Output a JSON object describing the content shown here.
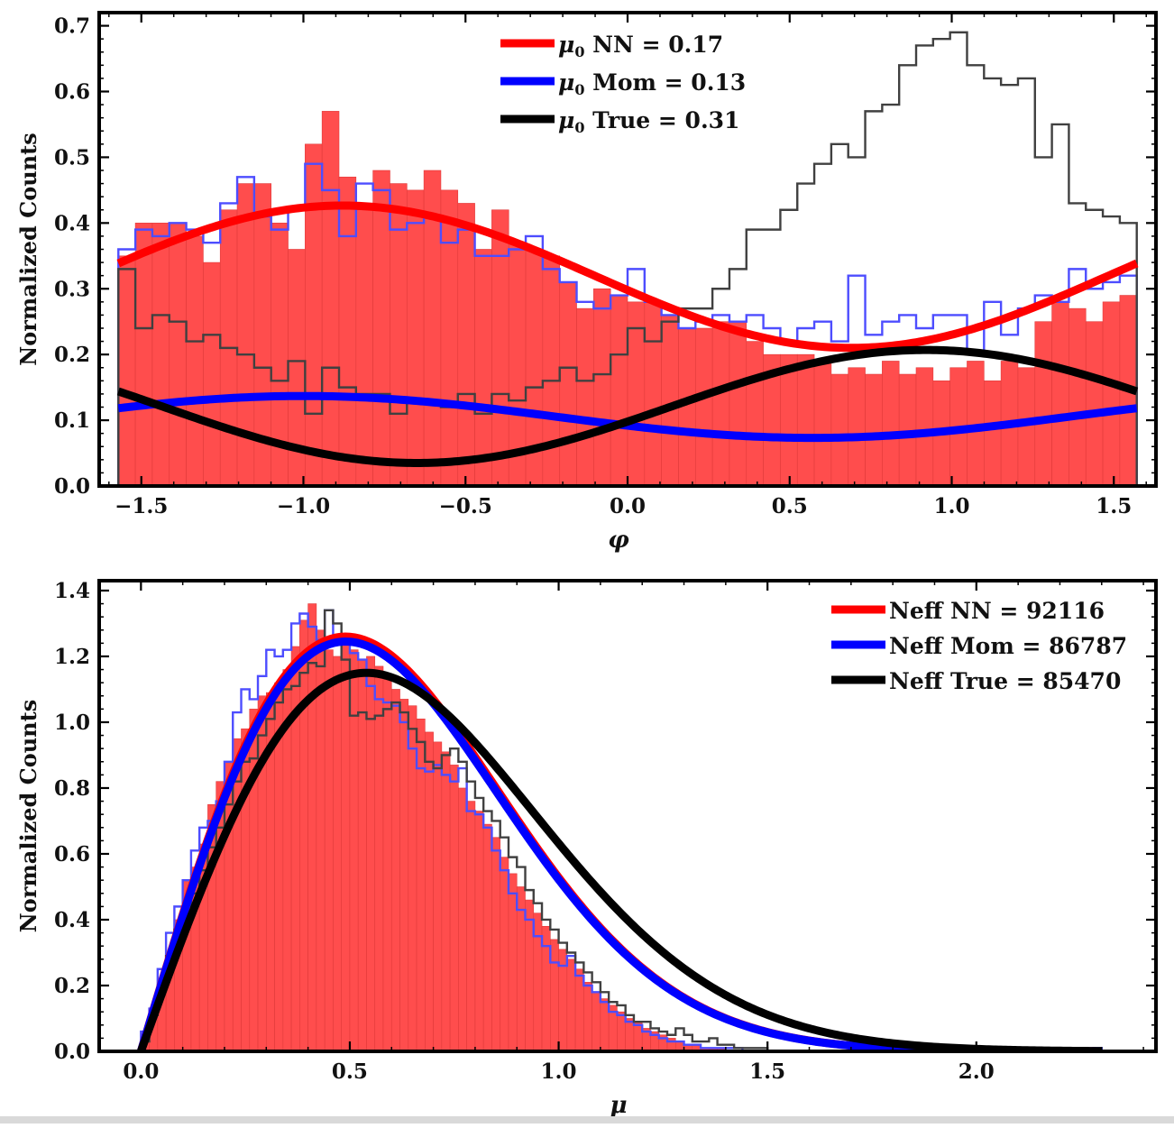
{
  "chart_data": [
    {
      "type": "bar",
      "title": "",
      "xlabel": "φ",
      "ylabel": "Normalized Counts",
      "xlim": [
        -1.63,
        1.63
      ],
      "ylim": [
        0.0,
        0.72
      ],
      "xticks": [
        -1.5,
        -1.0,
        -0.5,
        0.0,
        0.5,
        1.0,
        1.5
      ],
      "xtick_labels": [
        "−1.5",
        "−1.0",
        "−0.5",
        "0.0",
        "0.5",
        "1.0",
        "1.5"
      ],
      "yticks": [
        0.0,
        0.1,
        0.2,
        0.3,
        0.4,
        0.5,
        0.6,
        0.7
      ],
      "ytick_labels": [
        "0.0",
        "0.1",
        "0.2",
        "0.3",
        "0.4",
        "0.5",
        "0.6",
        "0.7"
      ],
      "legend_position": "top-center",
      "bins": {
        "start": -1.5708,
        "end": 1.5708,
        "count": 60,
        "series": [
          {
            "name": "NN",
            "style": "filled",
            "color": "#ff4d4d",
            "values": [
              0.35,
              0.4,
              0.4,
              0.4,
              0.38,
              0.34,
              0.42,
              0.46,
              0.46,
              0.4,
              0.36,
              0.52,
              0.57,
              0.47,
              0.42,
              0.48,
              0.46,
              0.45,
              0.48,
              0.45,
              0.43,
              0.36,
              0.42,
              0.37,
              0.36,
              0.35,
              0.31,
              0.27,
              0.3,
              0.29,
              0.28,
              0.28,
              0.26,
              0.24,
              0.24,
              0.25,
              0.25,
              0.22,
              0.2,
              0.2,
              0.2,
              0.19,
              0.17,
              0.18,
              0.17,
              0.19,
              0.17,
              0.18,
              0.16,
              0.18,
              0.19,
              0.16,
              0.19,
              0.18,
              0.25,
              0.28,
              0.27,
              0.25,
              0.28,
              0.29
            ]
          },
          {
            "name": "Mom",
            "style": "step",
            "color": "#4d4dff",
            "values": [
              0.36,
              0.39,
              0.38,
              0.4,
              0.39,
              0.37,
              0.43,
              0.47,
              0.41,
              0.39,
              0.42,
              0.49,
              0.45,
              0.38,
              0.46,
              0.45,
              0.39,
              0.4,
              0.41,
              0.37,
              0.39,
              0.35,
              0.35,
              0.36,
              0.38,
              0.33,
              0.31,
              0.28,
              0.27,
              0.29,
              0.33,
              0.28,
              0.26,
              0.24,
              0.25,
              0.26,
              0.25,
              0.26,
              0.24,
              0.22,
              0.24,
              0.25,
              0.22,
              0.32,
              0.23,
              0.25,
              0.26,
              0.24,
              0.26,
              0.26,
              0.2,
              0.28,
              0.23,
              0.27,
              0.29,
              0.28,
              0.33,
              0.3,
              0.31,
              0.32
            ]
          },
          {
            "name": "True",
            "style": "step",
            "color": "#404040",
            "values": [
              0.33,
              0.24,
              0.26,
              0.25,
              0.22,
              0.23,
              0.21,
              0.2,
              0.18,
              0.16,
              0.19,
              0.11,
              0.18,
              0.15,
              0.14,
              0.14,
              0.11,
              0.13,
              0.13,
              0.12,
              0.14,
              0.11,
              0.14,
              0.13,
              0.15,
              0.16,
              0.18,
              0.16,
              0.17,
              0.2,
              0.24,
              0.22,
              0.25,
              0.27,
              0.27,
              0.3,
              0.33,
              0.39,
              0.39,
              0.42,
              0.46,
              0.49,
              0.52,
              0.5,
              0.57,
              0.58,
              0.64,
              0.67,
              0.68,
              0.69,
              0.64,
              0.62,
              0.61,
              0.62,
              0.5,
              0.55,
              0.43,
              0.42,
              0.41,
              0.4
            ]
          }
        ]
      },
      "curves": [
        {
          "name": "μ₀ NN = 0.17",
          "label_math": "μ0",
          "label_rest": "NN = 0.17",
          "color": "#ff0000",
          "mean": 1.0,
          "amplitude": 0.34,
          "peak_at": -0.88
        },
        {
          "name": "μ₀ Mom = 0.13",
          "label_math": "μ0",
          "label_rest": "Mom = 0.13",
          "color": "#0000ff",
          "mean": 0.33,
          "amplitude": 0.1,
          "peak_at": -1.0
        },
        {
          "name": "μ₀ True = 0.31",
          "label_math": "μ0",
          "label_rest": "True = 0.31",
          "color": "#000000",
          "mean": 0.38,
          "amplitude": -0.27,
          "peak_at": -0.65
        }
      ]
    },
    {
      "type": "bar",
      "title": "",
      "xlabel": "μ",
      "ylabel": "Normalized Counts",
      "xlim": [
        -0.1,
        2.43
      ],
      "ylim": [
        0.0,
        1.43
      ],
      "xticks": [
        0.0,
        0.5,
        1.0,
        1.5,
        2.0
      ],
      "xtick_labels": [
        "0.0",
        "0.5",
        "1.0",
        "1.5",
        "2.0"
      ],
      "yticks": [
        0.0,
        0.2,
        0.4,
        0.6,
        0.8,
        1.0,
        1.2,
        1.4
      ],
      "ytick_labels": [
        "0.0",
        "0.2",
        "0.4",
        "0.6",
        "0.8",
        "1.0",
        "1.2",
        "1.4"
      ],
      "legend_position": "top-right",
      "bins": {
        "start": 0.0,
        "width": 0.02,
        "count": 115,
        "series": [
          {
            "name": "NN",
            "style": "filled",
            "color": "#ff4d4d",
            "values": [
              0.04,
              0.13,
              0.21,
              0.3,
              0.4,
              0.52,
              0.56,
              0.63,
              0.75,
              0.82,
              0.88,
              0.95,
              0.98,
              1.04,
              1.08,
              1.09,
              1.12,
              1.16,
              1.23,
              1.31,
              1.36,
              1.28,
              1.22,
              1.2,
              1.25,
              1.22,
              1.19,
              1.2,
              1.17,
              1.13,
              1.1,
              1.07,
              1.05,
              1.01,
              0.97,
              0.94,
              0.91,
              0.87,
              0.8,
              0.76,
              0.73,
              0.69,
              0.65,
              0.59,
              0.54,
              0.5,
              0.46,
              0.42,
              0.38,
              0.34,
              0.31,
              0.28,
              0.25,
              0.21,
              0.18,
              0.16,
              0.14,
              0.12,
              0.1,
              0.09,
              0.07,
              0.06,
              0.05,
              0.04,
              0.03,
              0.02,
              0.02,
              0.01,
              0.01,
              0.01,
              0.0,
              0.0,
              0.0,
              0.0,
              0.0,
              0.0,
              0.0,
              0.0,
              0.0,
              0.0,
              0.0,
              0.0,
              0.0,
              0.0,
              0.0,
              0.0,
              0.0,
              0.0,
              0.0,
              0.0,
              0.0,
              0.0,
              0.0,
              0.0,
              0.0,
              0.0,
              0.0,
              0.0,
              0.0,
              0.0,
              0.0,
              0.0,
              0.0,
              0.0,
              0.0,
              0.0,
              0.0,
              0.0,
              0.0,
              0.0,
              0.0,
              0.0,
              0.0,
              0.0,
              0.0
            ]
          },
          {
            "name": "Mom",
            "style": "step",
            "color": "#4d4dff",
            "values": [
              0.06,
              0.13,
              0.25,
              0.36,
              0.44,
              0.52,
              0.61,
              0.68,
              0.7,
              0.76,
              0.88,
              1.03,
              1.1,
              1.07,
              1.14,
              1.22,
              1.2,
              1.22,
              1.3,
              1.33,
              1.29,
              1.25,
              1.34,
              1.24,
              1.24,
              1.21,
              1.19,
              1.11,
              1.07,
              1.06,
              1.05,
              1.0,
              0.92,
              0.86,
              0.85,
              0.87,
              0.84,
              0.82,
              0.86,
              0.73,
              0.72,
              0.68,
              0.61,
              0.55,
              0.48,
              0.43,
              0.4,
              0.35,
              0.32,
              0.27,
              0.26,
              0.29,
              0.23,
              0.2,
              0.18,
              0.15,
              0.12,
              0.11,
              0.09,
              0.08,
              0.06,
              0.05,
              0.04,
              0.03,
              0.03,
              0.02,
              0.02,
              0.01,
              0.01,
              0.01,
              0.01,
              0.01,
              0.0,
              0.0,
              0.0,
              0.0,
              0.0,
              0.0,
              0.0,
              0.0,
              0.0,
              0.0,
              0.0,
              0.0,
              0.0,
              0.0,
              0.0,
              0.0,
              0.0,
              0.0,
              0.0,
              0.0,
              0.0,
              0.0,
              0.0,
              0.0,
              0.0,
              0.0,
              0.0,
              0.0,
              0.0,
              0.0,
              0.0,
              0.0,
              0.0,
              0.0,
              0.0,
              0.0,
              0.0,
              0.0,
              0.0,
              0.0,
              0.0,
              0.0,
              0.01
            ]
          },
          {
            "name": "True",
            "style": "step",
            "color": "#404040",
            "values": [
              0.03,
              0.11,
              0.2,
              0.29,
              0.37,
              0.4,
              0.48,
              0.55,
              0.62,
              0.68,
              0.75,
              0.82,
              0.88,
              0.89,
              0.96,
              1.01,
              1.06,
              1.1,
              1.11,
              1.15,
              1.18,
              1.17,
              1.34,
              1.3,
              1.19,
              1.02,
              1.03,
              1.01,
              1.02,
              1.04,
              1.06,
              1.03,
              0.98,
              0.94,
              0.88,
              0.86,
              0.9,
              0.92,
              0.88,
              0.82,
              0.77,
              0.73,
              0.7,
              0.65,
              0.59,
              0.56,
              0.49,
              0.45,
              0.4,
              0.37,
              0.33,
              0.3,
              0.27,
              0.24,
              0.21,
              0.18,
              0.15,
              0.14,
              0.11,
              0.09,
              0.09,
              0.07,
              0.06,
              0.05,
              0.07,
              0.05,
              0.03,
              0.03,
              0.04,
              0.02,
              0.02,
              0.01,
              0.01,
              0.01,
              0.01,
              0.0,
              0.0,
              0.0,
              0.0,
              0.0,
              0.0,
              0.0,
              0.0,
              0.0,
              0.0,
              0.0,
              0.0,
              0.0,
              0.0,
              0.0,
              0.0,
              0.0,
              0.0,
              0.0,
              0.0,
              0.0,
              0.0,
              0.0,
              0.0,
              0.0,
              0.0,
              0.0,
              0.0,
              0.0,
              0.0,
              0.0,
              0.0,
              0.0,
              0.0,
              0.0,
              0.0,
              0.0,
              0.0,
              0.0,
              0.0
            ]
          }
        ]
      },
      "curves": [
        {
          "name": "Neff NN = 92116",
          "color": "#ff0000",
          "peak_x": 0.49,
          "peak_y": 1.26
        },
        {
          "name": "Neff Mom = 86787",
          "color": "#0000ff",
          "peak_x": 0.49,
          "peak_y": 1.245
        },
        {
          "name": "Neff True = 85470",
          "color": "#000000",
          "peak_x": 0.54,
          "peak_y": 1.15
        }
      ]
    }
  ]
}
